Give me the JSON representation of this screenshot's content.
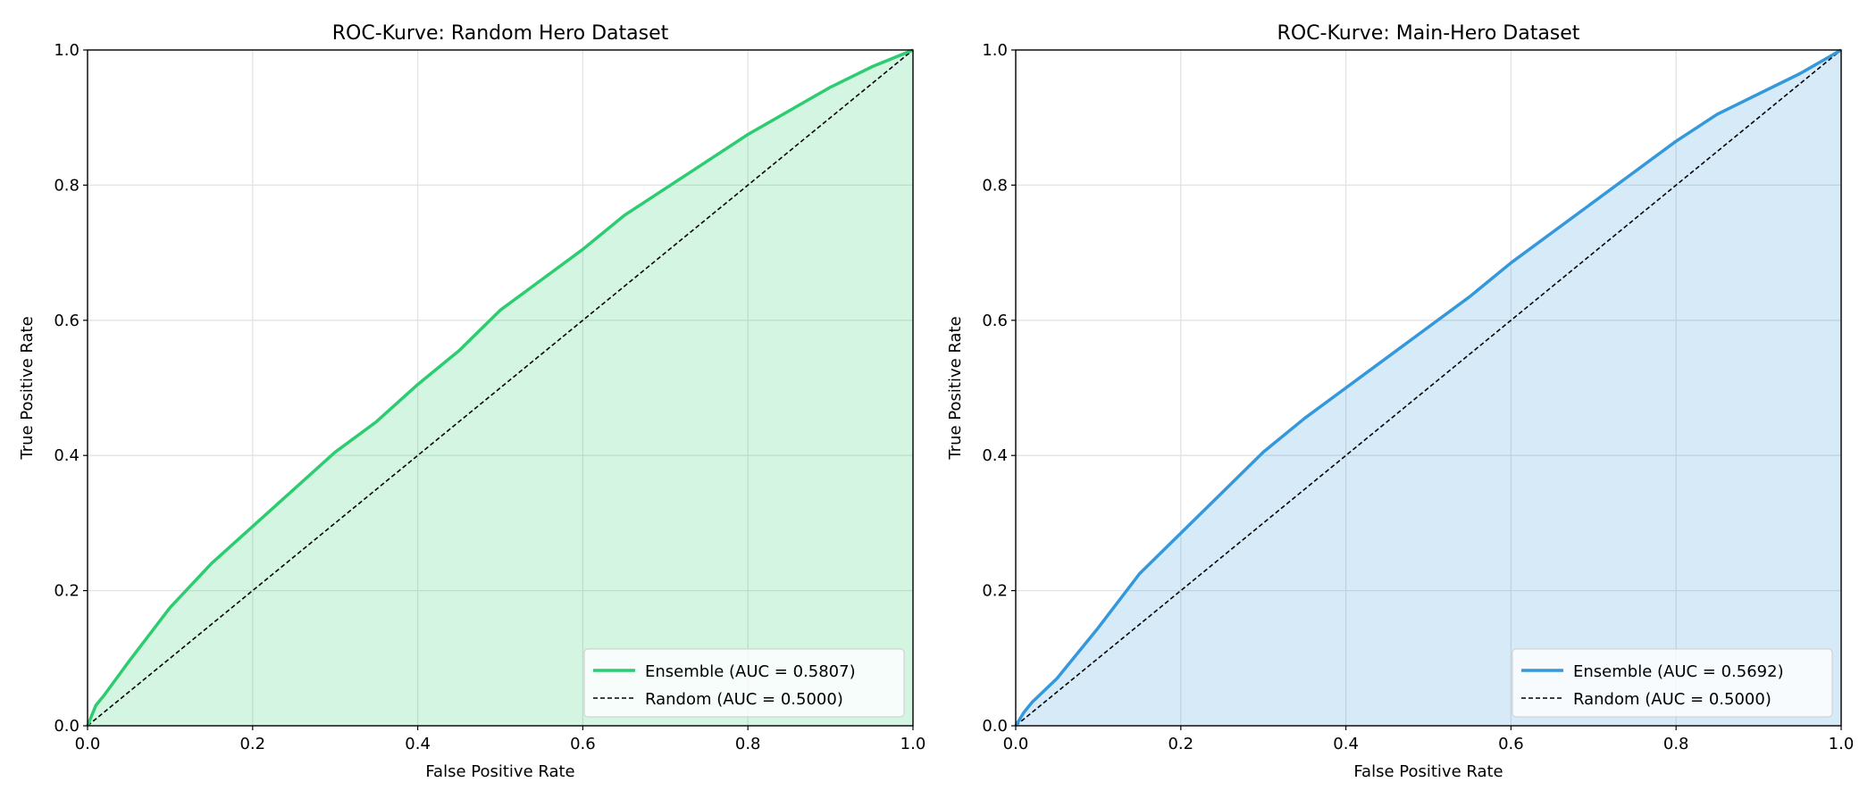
{
  "chart_data": [
    {
      "type": "line",
      "title": "ROC-Kurve: Random Hero Dataset",
      "xlabel": "False Positive Rate",
      "ylabel": "True Positive Rate",
      "xlim": [
        0,
        1
      ],
      "ylim": [
        0,
        1
      ],
      "xticks": [
        "0.0",
        "0.2",
        "0.4",
        "0.6",
        "0.8",
        "1.0"
      ],
      "yticks": [
        "0.0",
        "0.2",
        "0.4",
        "0.6",
        "0.8",
        "1.0"
      ],
      "grid": true,
      "legend_position": "lower-right",
      "color": "#2ecc71",
      "fill_under_curve": true,
      "series": [
        {
          "name": "Ensemble (AUC = 0.5807)",
          "style": "solid",
          "x": [
            0,
            0.01,
            0.02,
            0.05,
            0.1,
            0.15,
            0.2,
            0.25,
            0.3,
            0.35,
            0.4,
            0.45,
            0.5,
            0.55,
            0.6,
            0.65,
            0.7,
            0.75,
            0.8,
            0.85,
            0.9,
            0.95,
            1.0
          ],
          "y": [
            0,
            0.03,
            0.045,
            0.095,
            0.175,
            0.24,
            0.295,
            0.35,
            0.405,
            0.45,
            0.505,
            0.555,
            0.615,
            0.66,
            0.705,
            0.755,
            0.795,
            0.835,
            0.875,
            0.91,
            0.945,
            0.975,
            1.0
          ]
        },
        {
          "name": "Random (AUC = 0.5000)",
          "style": "dashed",
          "x": [
            0,
            1
          ],
          "y": [
            0,
            1
          ]
        }
      ]
    },
    {
      "type": "line",
      "title": "ROC-Kurve: Main-Hero Dataset",
      "xlabel": "False Positive Rate",
      "ylabel": "True Positive Rate",
      "xlim": [
        0,
        1
      ],
      "ylim": [
        0,
        1
      ],
      "xticks": [
        "0.0",
        "0.2",
        "0.4",
        "0.6",
        "0.8",
        "1.0"
      ],
      "yticks": [
        "0.0",
        "0.2",
        "0.4",
        "0.6",
        "0.8",
        "1.0"
      ],
      "grid": true,
      "legend_position": "lower-right",
      "color": "#3498db",
      "fill_under_curve": true,
      "series": [
        {
          "name": "Ensemble (AUC = 0.5692)",
          "style": "solid",
          "x": [
            0,
            0.01,
            0.02,
            0.05,
            0.1,
            0.15,
            0.2,
            0.25,
            0.3,
            0.35,
            0.4,
            0.45,
            0.5,
            0.55,
            0.6,
            0.65,
            0.7,
            0.75,
            0.8,
            0.85,
            0.9,
            0.95,
            1.0
          ],
          "y": [
            0,
            0.02,
            0.035,
            0.07,
            0.145,
            0.225,
            0.285,
            0.345,
            0.405,
            0.455,
            0.5,
            0.545,
            0.59,
            0.635,
            0.685,
            0.73,
            0.775,
            0.82,
            0.865,
            0.905,
            0.935,
            0.965,
            1.0
          ]
        },
        {
          "name": "Random (AUC = 0.5000)",
          "style": "dashed",
          "x": [
            0,
            1
          ],
          "y": [
            0,
            1
          ]
        }
      ]
    }
  ]
}
